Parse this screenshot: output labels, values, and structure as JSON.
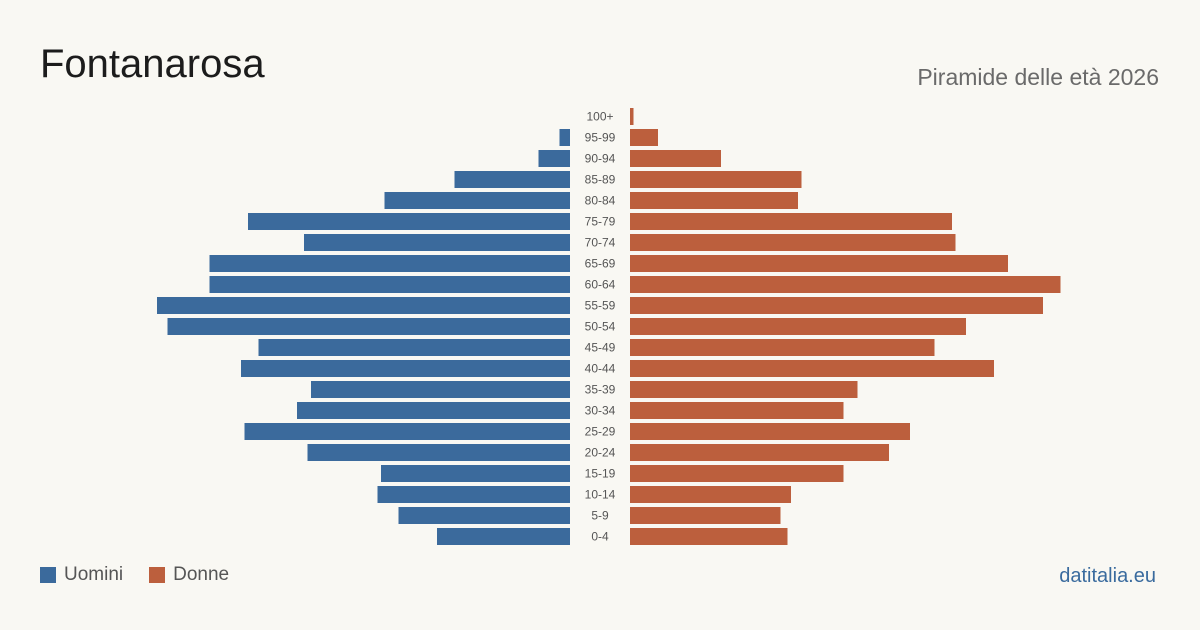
{
  "title": "Fontanarosa",
  "subtitle": "Piramide delle età 2026",
  "source": "datitalia.eu",
  "legend": {
    "men_label": "Uomini",
    "women_label": "Donne"
  },
  "colors": {
    "men": "#3b6a9c",
    "women": "#bc5f3d",
    "background": "#f9f8f3"
  },
  "chart_data": {
    "type": "bar",
    "orientation": "horizontal-pyramid",
    "categories": [
      "100+",
      "95-99",
      "90-94",
      "85-89",
      "80-84",
      "75-79",
      "70-74",
      "65-69",
      "60-64",
      "55-59",
      "50-54",
      "45-49",
      "40-44",
      "35-39",
      "30-34",
      "25-29",
      "20-24",
      "15-19",
      "10-14",
      "5-9",
      "0-4"
    ],
    "series": [
      {
        "name": "Uomini",
        "values": [
          0,
          3,
          9,
          33,
          53,
          92,
          76,
          103,
          103,
          118,
          115,
          89,
          94,
          74,
          78,
          93,
          75,
          54,
          55,
          49,
          38
        ]
      },
      {
        "name": "Donne",
        "values": [
          1,
          8,
          26,
          49,
          48,
          92,
          93,
          108,
          123,
          118,
          96,
          87,
          104,
          65,
          61,
          80,
          74,
          61,
          46,
          43,
          45
        ]
      }
    ]
  }
}
